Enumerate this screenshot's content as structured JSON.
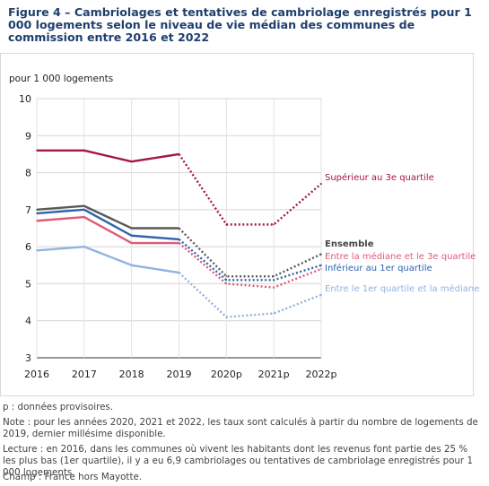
{
  "title": "Figure 4 – Cambriolages et tentatives de cambriolage enregistrés pour 1 000 logements selon le niveau de vie médian des communes de commission entre 2016 et 2022",
  "unit_label": "pour 1 000 logements",
  "notes": {
    "provisional": "p : données provisoires.",
    "note": "Note : pour les années 2020, 2021 et 2022, les taux sont calculés à partir du nombre de logements de 2019, dernier millésime disponible.",
    "lecture": "Lecture : en 2016, dans les communes où vivent les habitants dont les revenus font partie des 25 % les plus bas (1er quartile), il y a eu 6,9 cambriolages ou tentatives de cambriolage enregistrés pour 1 000 logements.",
    "champ": "Champ : France hors Mayotte."
  },
  "chart_data": {
    "type": "line",
    "title": "",
    "xlabel": "",
    "ylabel": "pour 1 000 logements",
    "categories": [
      "2016",
      "2017",
      "2018",
      "2019",
      "2020p",
      "2021p",
      "2022p"
    ],
    "ylim": [
      3,
      10
    ],
    "yticks": [
      3,
      4,
      5,
      6,
      7,
      8,
      9,
      10
    ],
    "grid": true,
    "provisional_from_index": 3,
    "series": [
      {
        "name": "Supérieur au 3e quartile",
        "color": "#a6163f",
        "values": [
          8.6,
          8.6,
          8.3,
          8.5,
          6.6,
          6.6,
          7.7
        ]
      },
      {
        "name": "Ensemble",
        "color": "#5a5a5a",
        "values": [
          7.0,
          7.1,
          6.5,
          6.5,
          5.2,
          5.2,
          5.8
        ]
      },
      {
        "name": "Entre la médiane et le 3e quartile",
        "color": "#e05a78",
        "values": [
          6.7,
          6.8,
          6.1,
          6.1,
          5.0,
          4.9,
          5.4
        ]
      },
      {
        "name": "Inférieur au 1er quartile",
        "color": "#2f63ae",
        "values": [
          6.9,
          7.0,
          6.3,
          6.2,
          5.1,
          5.1,
          5.5
        ]
      },
      {
        "name": "Entre le 1er quartile et la médiane",
        "color": "#92b2e0",
        "values": [
          5.9,
          6.0,
          5.5,
          5.3,
          4.1,
          4.2,
          4.7
        ]
      }
    ]
  }
}
